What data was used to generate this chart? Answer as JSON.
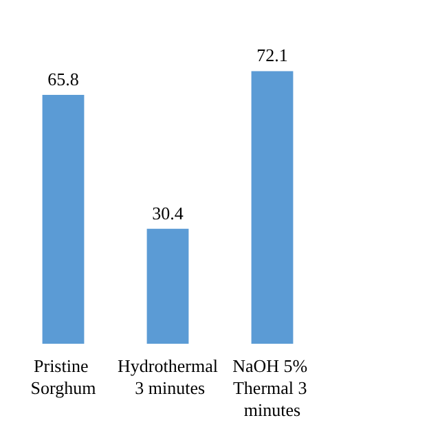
{
  "chart_data": {
    "type": "bar",
    "categories": [
      "Pristine Sorghum",
      "Hydrothermal 3 minutes",
      "NaOH 5% Thermal 3 minutes",
      null
    ],
    "values": [
      65.8,
      30.4,
      72.1,
      null
    ],
    "color": "#5b9bd5",
    "data_labels": true
  }
}
